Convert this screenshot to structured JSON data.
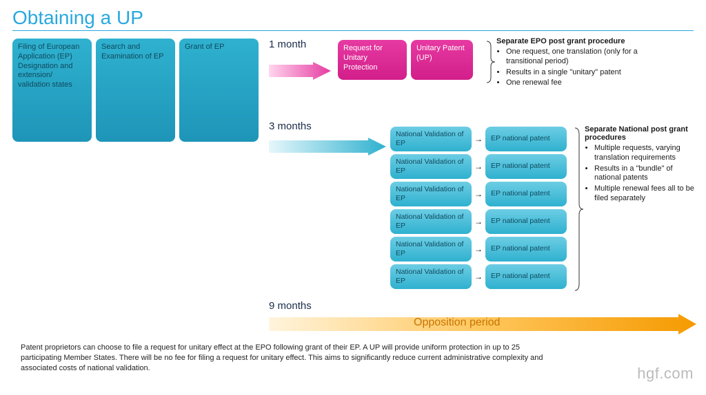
{
  "title": "Obtaining a UP",
  "colors": {
    "title": "#29a8df",
    "teal_grad_top": "#6ccde4",
    "teal_grad_bot": "#2fb1cf",
    "teal_dark_top": "#2fb1cf",
    "teal_dark_bot": "#1e95b8",
    "pink_top": "#e63aa1",
    "pink_bot": "#d21e8a",
    "orange_top": "#ffb431",
    "orange_bot": "#f59a00",
    "opp_text": "#c77400",
    "brand": "#bbbbbb"
  },
  "phases": {
    "p1": "Filing of European Application (EP) Designation and extension/ validation states",
    "p2": "Search and Examination of EP",
    "p3": "Grant of EP"
  },
  "timelines": {
    "one_month": "1 month",
    "three_months": "3 months",
    "nine_months": "9 months",
    "opposition": "Opposition period"
  },
  "up_path": {
    "req": "Request for Unitary Protection",
    "up": "Unitary Patent (UP)"
  },
  "epo_info": {
    "heading": "Separate EPO post grant procedure",
    "b1": "One request, one translation (only for a transitional period)",
    "b2": "Results in a single \"unitary\" patent",
    "b3": "One renewal fee"
  },
  "nat": {
    "left": "National Validation of EP",
    "right": "EP national patent",
    "count": 6
  },
  "nat_info": {
    "heading": "Separate National post grant procedures",
    "b1": "Multiple requests, varying translation requirements",
    "b2": "Results in a \"bundle\" of national patents",
    "b3": "Multiple renewal fees all to be filed separately"
  },
  "footer": "Patent proprietors can choose to file a request for unitary effect at the EPO following grant of their EP. A UP will provide uniform protection in up to 25 participating Member States. There will be no fee for filing a request for unitary effect. This aims to significantly reduce current administrative complexity and associated costs of national validation.",
  "brand": "hgf.com"
}
